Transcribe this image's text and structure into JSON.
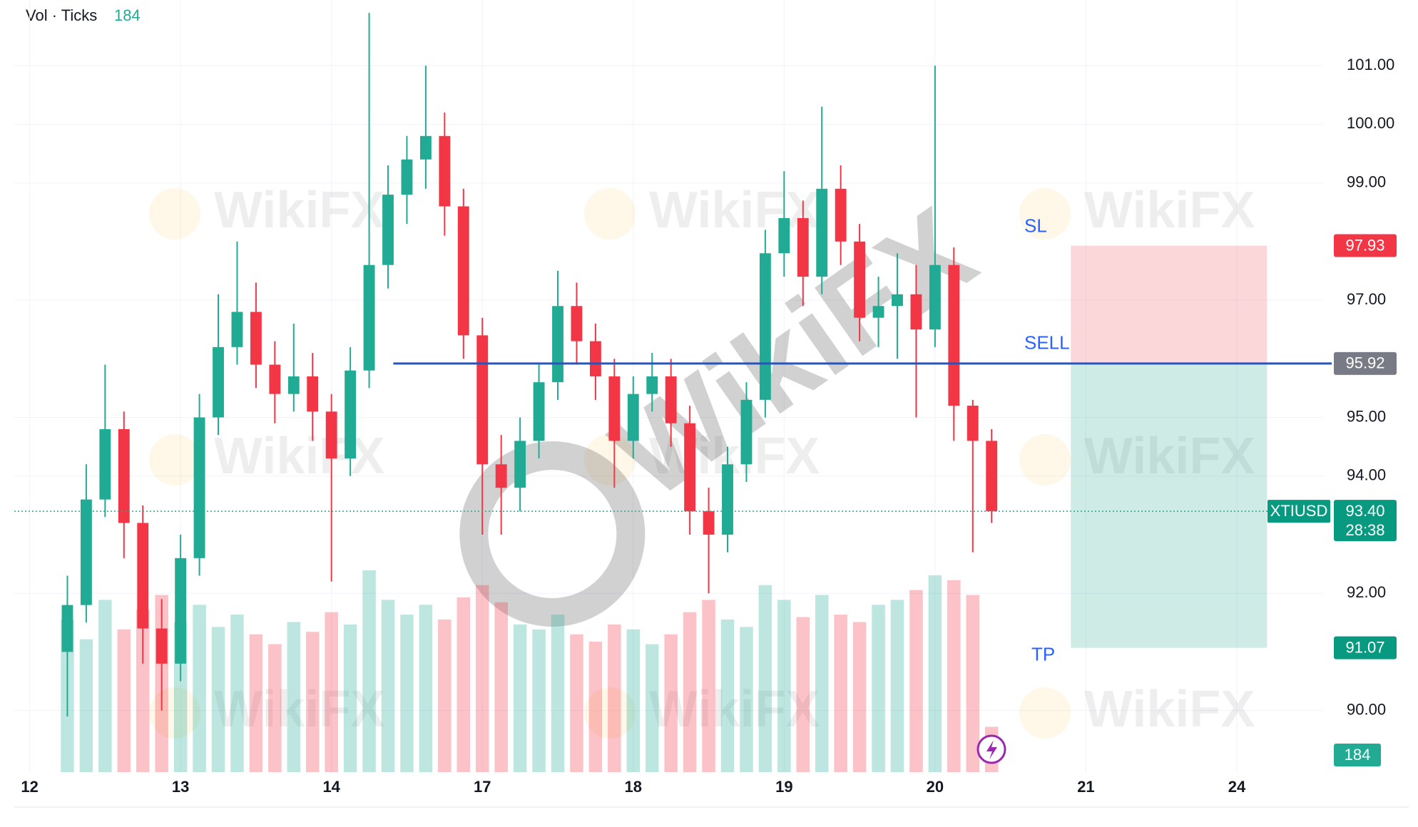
{
  "chart_data": {
    "type": "candlestick",
    "volume_indicator": {
      "name": "Vol · Ticks",
      "last": 184
    },
    "x": [
      0.25,
      0.375,
      0.5,
      0.625,
      0.75,
      0.875,
      1.0,
      1.125,
      1.25,
      1.375,
      1.5,
      1.625,
      1.75,
      1.875,
      2.0,
      2.125,
      2.25,
      2.375,
      2.5,
      2.625,
      2.75,
      2.875,
      3.0,
      3.125,
      3.25,
      3.375,
      3.5,
      3.625,
      3.75,
      3.875,
      4.0,
      4.125,
      4.25,
      4.375,
      4.5,
      4.625,
      4.75,
      4.875,
      5.0,
      5.125,
      5.25,
      5.375,
      5.5,
      5.625,
      5.75,
      5.875,
      6.0,
      6.125,
      6.25,
      6.375
    ],
    "open": [
      91.0,
      91.8,
      93.6,
      94.8,
      93.2,
      91.4,
      90.8,
      92.6,
      95.0,
      96.2,
      96.8,
      95.9,
      95.4,
      95.7,
      95.1,
      94.3,
      95.8,
      97.6,
      98.8,
      99.4,
      99.8,
      98.6,
      96.4,
      94.2,
      93.8,
      94.6,
      95.6,
      96.9,
      96.3,
      95.7,
      94.6,
      95.4,
      95.7,
      94.9,
      93.4,
      93.0,
      94.2,
      95.3,
      97.8,
      98.4,
      97.4,
      98.9,
      98.0,
      96.7,
      96.9,
      97.1,
      96.5,
      97.6,
      95.2,
      94.6
    ],
    "high": [
      92.3,
      94.2,
      95.9,
      95.1,
      93.5,
      91.9,
      93.0,
      95.4,
      97.1,
      98.0,
      97.3,
      96.3,
      96.6,
      96.1,
      95.4,
      96.2,
      101.9,
      99.3,
      99.8,
      101.0,
      100.2,
      98.9,
      96.7,
      94.7,
      95.0,
      95.9,
      97.5,
      97.3,
      96.6,
      96.0,
      95.7,
      96.1,
      96.0,
      95.2,
      93.8,
      94.5,
      95.6,
      98.2,
      99.2,
      98.7,
      100.3,
      99.3,
      98.3,
      97.4,
      97.8,
      97.6,
      101.0,
      97.9,
      95.3,
      94.8
    ],
    "low": [
      89.9,
      91.5,
      93.3,
      92.6,
      90.8,
      90.0,
      90.5,
      92.3,
      94.7,
      95.9,
      95.5,
      94.9,
      95.1,
      94.6,
      92.2,
      94.0,
      95.5,
      97.2,
      98.3,
      98.9,
      98.1,
      96.0,
      93.0,
      93.0,
      93.4,
      94.3,
      95.3,
      95.9,
      95.3,
      93.8,
      94.3,
      95.1,
      94.5,
      93.0,
      92.0,
      92.7,
      93.9,
      95.0,
      97.4,
      96.9,
      97.1,
      97.6,
      96.3,
      96.2,
      96.0,
      95.0,
      96.2,
      94.6,
      92.7,
      93.2
    ],
    "close": [
      91.8,
      93.6,
      94.8,
      93.2,
      91.4,
      90.8,
      92.6,
      95.0,
      96.2,
      96.8,
      95.9,
      95.4,
      95.7,
      95.1,
      94.3,
      95.8,
      97.6,
      98.8,
      99.4,
      99.8,
      98.6,
      96.4,
      94.2,
      93.8,
      94.6,
      95.6,
      96.9,
      96.3,
      95.7,
      94.6,
      95.4,
      95.7,
      94.9,
      93.4,
      93.0,
      94.2,
      95.3,
      97.8,
      98.4,
      97.4,
      98.9,
      98.0,
      96.7,
      96.9,
      97.1,
      96.5,
      97.6,
      95.2,
      94.6,
      93.4
    ],
    "volume": [
      620,
      540,
      700,
      580,
      660,
      720,
      610,
      680,
      590,
      640,
      560,
      520,
      610,
      570,
      650,
      600,
      820,
      700,
      640,
      680,
      620,
      710,
      760,
      690,
      600,
      580,
      640,
      560,
      530,
      600,
      580,
      520,
      560,
      650,
      700,
      620,
      590,
      760,
      700,
      630,
      720,
      640,
      610,
      680,
      700,
      740,
      800,
      780,
      720,
      184
    ],
    "up_color": "#22ab94",
    "down_color": "#f23645",
    "xlim": [
      -0.102,
      8.572
    ],
    "xticks": [
      {
        "value": 0,
        "label": "12"
      },
      {
        "value": 1,
        "label": "13"
      },
      {
        "value": 2,
        "label": "14"
      },
      {
        "value": 3,
        "label": "17"
      },
      {
        "value": 4,
        "label": "18"
      },
      {
        "value": 5,
        "label": "19"
      },
      {
        "value": 6,
        "label": "20"
      },
      {
        "value": 7,
        "label": "21"
      },
      {
        "value": 8,
        "label": "24"
      }
    ],
    "ylim": [
      88.95,
      102.12
    ],
    "yticks": [
      {
        "value": 90,
        "label": "90.00"
      },
      {
        "value": 92,
        "label": "92.00"
      },
      {
        "value": 94,
        "label": "94.00"
      },
      {
        "value": 95,
        "label": "95.00"
      },
      {
        "value": 97,
        "label": "97.00"
      },
      {
        "value": 99,
        "label": "99.00"
      },
      {
        "value": 100,
        "label": "100.00"
      },
      {
        "value": 101,
        "label": "101.00"
      }
    ],
    "grid": true,
    "position": {
      "stop_label": "SL",
      "stop": 97.93,
      "entry_label": "SELL",
      "entry": 95.92,
      "target_label": "TP",
      "target": 91.07,
      "line_start": 2.41,
      "x_start": 6.9,
      "x_end": 8.2
    },
    "last_price": {
      "symbol": "XTIUSD",
      "value": 93.4,
      "label": "93.40",
      "countdown": "28:38"
    },
    "watermark": "WikiFX"
  }
}
